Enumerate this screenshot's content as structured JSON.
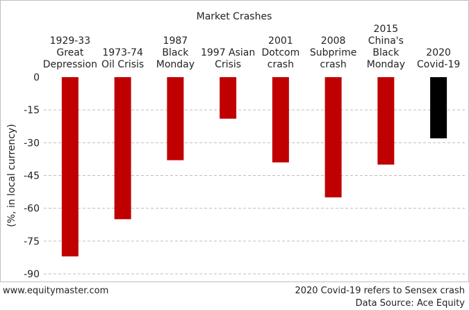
{
  "chart_data": {
    "type": "bar",
    "title": "Market Crashes",
    "ylabel": "(%, in local currency)",
    "xlabel": "",
    "ylim": [
      -90,
      0
    ],
    "yticks": [
      0,
      -15,
      -30,
      -45,
      -60,
      -75,
      -90
    ],
    "grid": true,
    "legend": "none",
    "categories": [
      [
        "1929-33",
        "Great",
        "Depression"
      ],
      [
        "1973-74",
        "Oil Crisis"
      ],
      [
        "1987",
        "Black",
        "Monday"
      ],
      [
        "1997 Asian",
        "Crisis"
      ],
      [
        "2001",
        "Dotcom",
        "crash"
      ],
      [
        "2008",
        "Subprime",
        "crash"
      ],
      [
        "2015",
        "China's",
        "Black",
        "Monday"
      ],
      [
        "2020",
        "Covid-19"
      ]
    ],
    "values": [
      -82,
      -65,
      -38,
      -19,
      -39,
      -55,
      -40,
      -28
    ],
    "colors": [
      "#c00000",
      "#c00000",
      "#c00000",
      "#c00000",
      "#c00000",
      "#c00000",
      "#c00000",
      "#000000"
    ]
  },
  "footer": {
    "website": "www.equitymaster.com",
    "note": "2020 Covid-19 refers to Sensex crash",
    "source": "Data Source: Ace Equity"
  }
}
